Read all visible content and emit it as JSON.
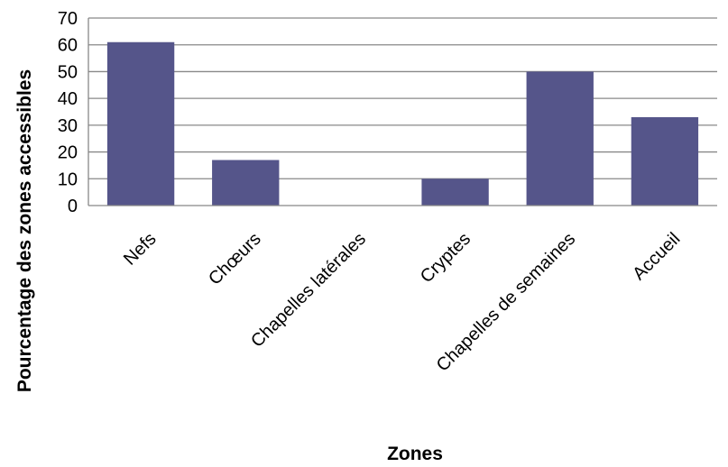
{
  "chart_data": {
    "type": "bar",
    "title": "",
    "xlabel": "Zones",
    "ylabel": "Pourcentage des zones accessibles",
    "categories": [
      "Nefs",
      "Chœurs",
      "Chapelles latérales",
      "Cryptes",
      "Chapelles de semaines",
      "Accueil"
    ],
    "values": [
      61,
      17,
      0,
      10,
      50,
      33
    ],
    "ylim": [
      0,
      70
    ],
    "yticks": [
      0,
      10,
      20,
      30,
      40,
      50,
      60,
      70
    ],
    "grid": true,
    "legend": "none",
    "bar_color": "#55558a",
    "grid_color": "#888888"
  }
}
